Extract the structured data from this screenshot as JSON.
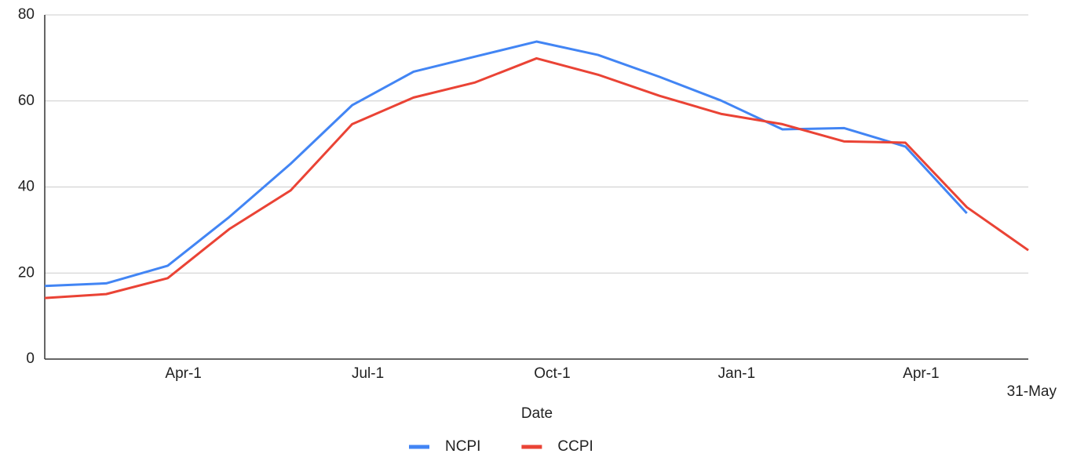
{
  "chart_data": {
    "type": "line",
    "x_label": "Date",
    "categories": [
      null,
      null,
      "Apr-1",
      null,
      null,
      "Jul-1",
      null,
      null,
      "Oct-1",
      null,
      null,
      "Jan-1",
      null,
      null,
      "Apr-1",
      null,
      "31-May"
    ],
    "series": [
      {
        "name": "NCPI",
        "color": "#4285f4",
        "values": [
          17,
          17.6,
          21.7,
          33,
          45.4,
          59,
          66.8,
          70.3,
          73.8,
          70.7,
          65.6,
          60.1,
          53.4,
          53.7,
          49.4,
          33.9,
          null
        ]
      },
      {
        "name": "CCPI",
        "color": "#ea4335",
        "values": [
          14.2,
          15.1,
          18.8,
          30.2,
          39.2,
          54.6,
          60.8,
          64.3,
          69.9,
          66.1,
          61.2,
          57,
          54.6,
          50.6,
          50.3,
          35.3,
          25.3
        ]
      }
    ],
    "ylim": [
      0,
      80
    ],
    "yticks": [
      0,
      20,
      40,
      60,
      80
    ],
    "grid": true
  }
}
